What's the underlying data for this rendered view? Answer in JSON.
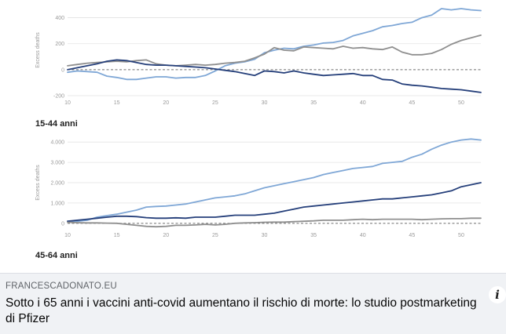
{
  "chart_data": [
    {
      "type": "line",
      "ylabel": "Excess deaths",
      "caption": "15-44 anni",
      "ylim": [
        -200,
        500
      ],
      "yticks": [
        -200,
        0,
        200,
        400
      ],
      "ytick_labels": [
        "-200",
        "0",
        "200",
        "400"
      ],
      "xlim": [
        10,
        52
      ],
      "xticks": [
        10,
        15,
        20,
        25,
        30,
        35,
        40,
        45,
        50
      ],
      "x": [
        10,
        11,
        12,
        13,
        14,
        15,
        16,
        17,
        18,
        19,
        20,
        21,
        22,
        23,
        24,
        25,
        26,
        27,
        28,
        29,
        30,
        31,
        32,
        33,
        34,
        35,
        36,
        37,
        38,
        39,
        40,
        41,
        42,
        43,
        44,
        45,
        46,
        47,
        48,
        49,
        50,
        51,
        52
      ],
      "series": [
        {
          "color": "#7fa7d6",
          "values": [
            -20,
            -10,
            -15,
            -20,
            -50,
            -60,
            -75,
            -75,
            -65,
            -55,
            -55,
            -65,
            -60,
            -60,
            -45,
            -10,
            30,
            50,
            60,
            80,
            130,
            150,
            165,
            160,
            180,
            190,
            205,
            210,
            225,
            260,
            280,
            300,
            330,
            340,
            355,
            365,
            400,
            420,
            470,
            460,
            470,
            460,
            455
          ]
        },
        {
          "color": "#8f8f8f",
          "values": [
            30,
            40,
            50,
            55,
            60,
            65,
            60,
            70,
            75,
            45,
            35,
            30,
            35,
            40,
            35,
            40,
            50,
            55,
            65,
            90,
            120,
            170,
            150,
            145,
            175,
            170,
            165,
            160,
            180,
            165,
            170,
            160,
            155,
            175,
            135,
            115,
            115,
            125,
            155,
            195,
            225,
            245,
            265
          ]
        },
        {
          "color": "#253f7a",
          "values": [
            0,
            15,
            30,
            45,
            65,
            75,
            70,
            55,
            40,
            35,
            35,
            30,
            25,
            20,
            15,
            5,
            -5,
            -15,
            -30,
            -45,
            -10,
            -15,
            -25,
            -10,
            -25,
            -35,
            -45,
            -40,
            -35,
            -30,
            -45,
            -45,
            -75,
            -80,
            -110,
            -120,
            -125,
            -135,
            -145,
            -150,
            -155,
            -165,
            -175
          ]
        }
      ]
    },
    {
      "type": "line",
      "ylabel": "Excess deaths",
      "caption": "45-64 anni",
      "ylim": [
        -200,
        4200
      ],
      "yticks": [
        0,
        1000,
        2000,
        3000,
        4000
      ],
      "ytick_labels": [
        "0",
        "1.000",
        "2.000",
        "3.000",
        "4.000"
      ],
      "xlim": [
        10,
        52
      ],
      "xticks": [
        10,
        15,
        20,
        25,
        30,
        35,
        40,
        45,
        50
      ],
      "x": [
        10,
        11,
        12,
        13,
        14,
        15,
        16,
        17,
        18,
        19,
        20,
        21,
        22,
        23,
        24,
        25,
        26,
        27,
        28,
        29,
        30,
        31,
        32,
        33,
        34,
        35,
        36,
        37,
        38,
        39,
        40,
        41,
        42,
        43,
        44,
        45,
        46,
        47,
        48,
        49,
        50,
        51,
        52
      ],
      "series": [
        {
          "color": "#7fa7d6",
          "values": [
            100,
            100,
            150,
            300,
            380,
            450,
            550,
            650,
            800,
            830,
            850,
            900,
            950,
            1050,
            1150,
            1250,
            1300,
            1350,
            1450,
            1600,
            1750,
            1850,
            1950,
            2050,
            2150,
            2250,
            2400,
            2500,
            2600,
            2700,
            2750,
            2800,
            2950,
            3000,
            3050,
            3250,
            3400,
            3650,
            3850,
            4000,
            4100,
            4150,
            4100
          ]
        },
        {
          "color": "#253f7a",
          "values": [
            100,
            150,
            200,
            250,
            300,
            350,
            350,
            330,
            280,
            250,
            250,
            270,
            250,
            300,
            300,
            300,
            350,
            400,
            400,
            400,
            450,
            500,
            600,
            700,
            800,
            850,
            900,
            950,
            1000,
            1050,
            1100,
            1150,
            1200,
            1200,
            1250,
            1300,
            1350,
            1400,
            1500,
            1600,
            1800,
            1900,
            2000
          ]
        },
        {
          "color": "#8f8f8f",
          "values": [
            50,
            30,
            20,
            20,
            10,
            0,
            -50,
            -100,
            -150,
            -170,
            -150,
            -100,
            -100,
            -80,
            -50,
            -80,
            -50,
            0,
            20,
            30,
            50,
            60,
            60,
            80,
            100,
            120,
            150,
            150,
            150,
            180,
            200,
            180,
            200,
            200,
            200,
            200,
            180,
            200,
            220,
            230,
            230,
            250,
            250
          ]
        }
      ]
    }
  ],
  "card": {
    "domain": "FRANCESCADONATO.EU",
    "headline": "Sotto i 65 anni i vaccini anti-covid aumentano il rischio di morte: lo studio postmarketing di Pfizer",
    "info_icon": "info-icon",
    "info_glyph": "i"
  }
}
